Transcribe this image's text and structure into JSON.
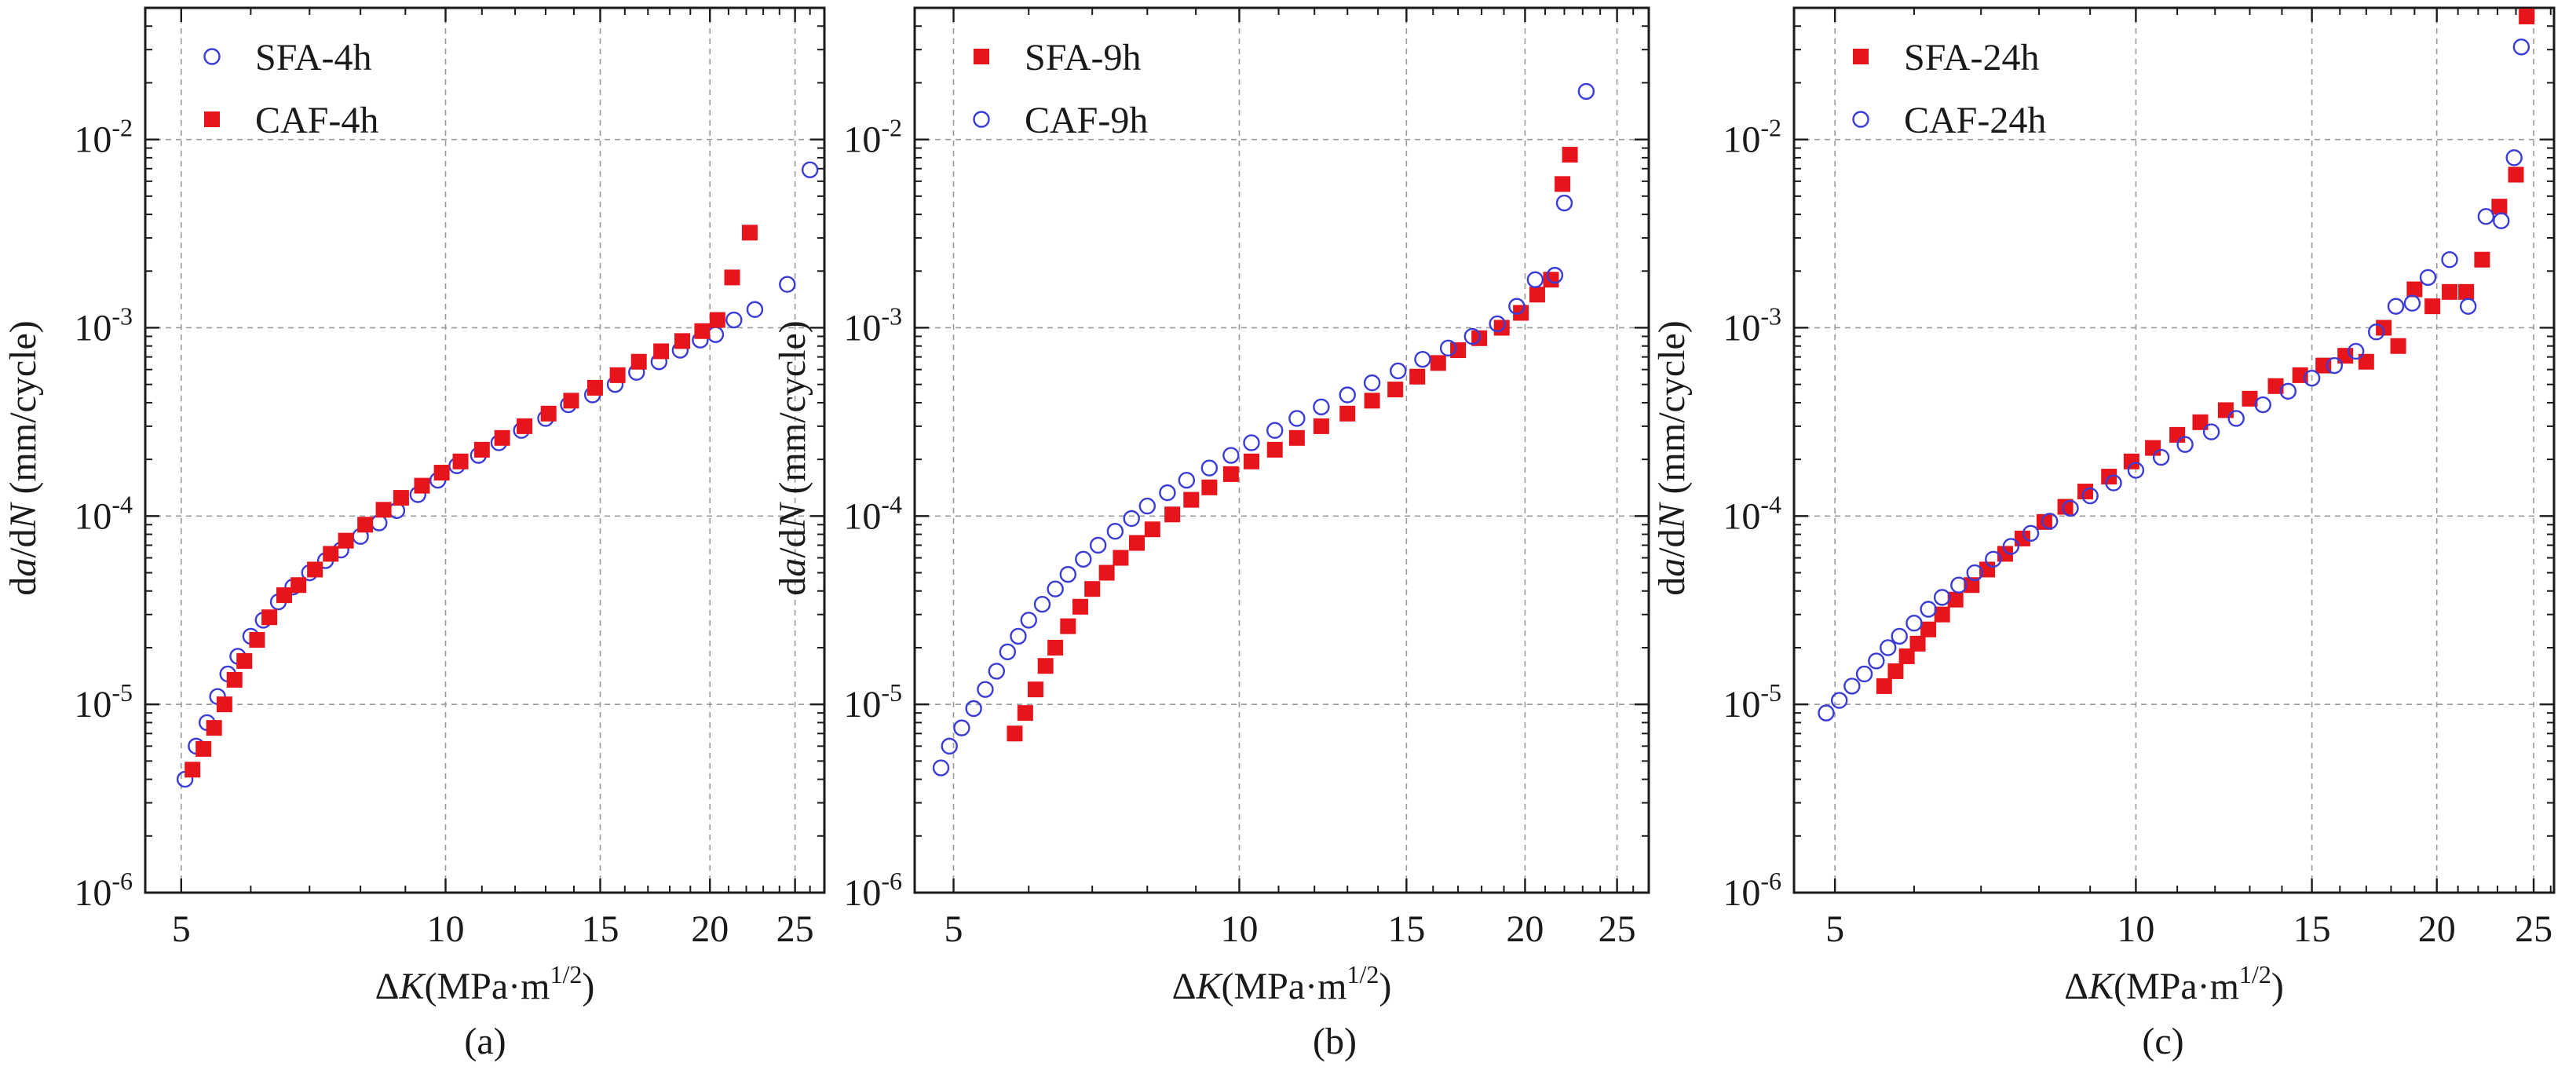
{
  "colors": {
    "sfa_open": "#3b3bd6",
    "caf_red": "#e8141b",
    "grid": "#9a9a9a",
    "axis": "#1a1a1a"
  },
  "chart_data": [
    {
      "type": "scatter",
      "caption": "(a)",
      "xscale": "log",
      "yscale": "log",
      "xlim": [
        4.55,
        27.0
      ],
      "ylim": [
        1e-06,
        0.05
      ],
      "xticks": [
        5,
        10,
        15,
        20,
        25
      ],
      "yticks": [
        1e-06,
        1e-05,
        0.0001,
        0.001,
        0.01
      ],
      "ytick_labels": [
        {
          "base": "10",
          "exp": "-6"
        },
        {
          "base": "10",
          "exp": "-5"
        },
        {
          "base": "10",
          "exp": "-4"
        },
        {
          "base": "10",
          "exp": "-3"
        },
        {
          "base": "10",
          "exp": "-2"
        }
      ],
      "xlabel": {
        "delta": "Δ",
        "var": "K",
        "unit": "(MPa·m",
        "exp": "1/2",
        "close": ")"
      },
      "ylabel": {
        "d1": "d",
        "a": "a",
        "slash": "/d",
        "N": "N",
        "unit": " (mm/cycle)"
      },
      "grid": true,
      "legend_position": "top-left",
      "series": [
        {
          "name": "SFA-4h",
          "marker": "open-circle",
          "x": [
            5.05,
            5.2,
            5.35,
            5.5,
            5.65,
            5.8,
            6.0,
            6.2,
            6.45,
            6.7,
            7.0,
            7.3,
            7.6,
            8.0,
            8.4,
            8.8,
            9.3,
            9.8,
            10.3,
            10.9,
            11.5,
            12.2,
            13.0,
            13.8,
            14.7,
            15.6,
            16.5,
            17.5,
            18.5,
            19.5,
            20.3,
            21.3,
            22.5,
            24.5,
            26.0
          ],
          "y": [
            4e-06,
            6e-06,
            8e-06,
            1.1e-05,
            1.45e-05,
            1.8e-05,
            2.3e-05,
            2.8e-05,
            3.5e-05,
            4.2e-05,
            5e-05,
            5.8e-05,
            6.6e-05,
            7.8e-05,
            9.2e-05,
            0.000107,
            0.00013,
            0.000155,
            0.000185,
            0.00021,
            0.000245,
            0.000285,
            0.00033,
            0.00039,
            0.00044,
            0.0005,
            0.00058,
            0.00066,
            0.00076,
            0.00086,
            0.00092,
            0.0011,
            0.00125,
            0.0017,
            0.0069
          ]
        },
        {
          "name": "CAF-4h",
          "marker": "filled-square",
          "x": [
            5.15,
            5.3,
            5.45,
            5.6,
            5.75,
            5.9,
            6.1,
            6.3,
            6.55,
            6.8,
            7.1,
            7.4,
            7.7,
            8.1,
            8.5,
            8.9,
            9.4,
            9.9,
            10.4,
            11.0,
            11.6,
            12.3,
            13.1,
            13.9,
            14.8,
            15.7,
            16.6,
            17.6,
            18.6,
            19.6,
            20.4,
            21.2,
            22.2
          ],
          "y": [
            4.5e-06,
            5.8e-06,
            7.5e-06,
            1e-05,
            1.35e-05,
            1.7e-05,
            2.2e-05,
            2.9e-05,
            3.8e-05,
            4.3e-05,
            5.2e-05,
            6.3e-05,
            7.4e-05,
            9e-05,
            0.000108,
            0.000125,
            0.000145,
            0.00017,
            0.000195,
            0.000225,
            0.00026,
            0.0003,
            0.00035,
            0.00041,
            0.00048,
            0.00056,
            0.00066,
            0.00075,
            0.00085,
            0.00096,
            0.0011,
            0.00185,
            0.0032
          ]
        }
      ]
    },
    {
      "type": "scatter",
      "caption": "(b)",
      "xscale": "log",
      "yscale": "log",
      "xlim": [
        4.55,
        27.0
      ],
      "ylim": [
        1e-06,
        0.05
      ],
      "xticks": [
        5,
        10,
        15,
        20,
        25
      ],
      "yticks": [
        1e-06,
        1e-05,
        0.0001,
        0.001,
        0.01
      ],
      "ytick_labels": [
        {
          "base": "10",
          "exp": "-6"
        },
        {
          "base": "10",
          "exp": "-5"
        },
        {
          "base": "10",
          "exp": "-4"
        },
        {
          "base": "10",
          "exp": "-3"
        },
        {
          "base": "10",
          "exp": "-2"
        }
      ],
      "xlabel": {
        "delta": "Δ",
        "var": "K",
        "unit": "(MPa·m",
        "exp": "1/2",
        "close": ")"
      },
      "ylabel": {
        "d1": "d",
        "a": "a",
        "slash": "/d",
        "N": "N",
        "unit": " (mm/cycle)"
      },
      "grid": true,
      "legend_position": "top-left",
      "series": [
        {
          "name": "SFA-9h",
          "marker": "filled-square",
          "x": [
            5.8,
            5.95,
            6.1,
            6.25,
            6.4,
            6.6,
            6.8,
            7.0,
            7.25,
            7.5,
            7.8,
            8.1,
            8.5,
            8.9,
            9.3,
            9.8,
            10.3,
            10.9,
            11.5,
            12.2,
            13.0,
            13.8,
            14.6,
            15.4,
            16.2,
            17.0,
            17.9,
            18.9,
            19.8,
            20.6,
            21.3,
            21.9,
            22.3
          ],
          "y": [
            7e-06,
            9e-06,
            1.2e-05,
            1.6e-05,
            2e-05,
            2.6e-05,
            3.3e-05,
            4.1e-05,
            5e-05,
            6e-05,
            7.2e-05,
            8.5e-05,
            0.000102,
            0.000122,
            0.000142,
            0.000167,
            0.000195,
            0.000225,
            0.00026,
            0.0003,
            0.00035,
            0.00041,
            0.00047,
            0.00055,
            0.00065,
            0.00076,
            0.00088,
            0.001,
            0.0012,
            0.0015,
            0.0018,
            0.0058,
            0.0083
          ]
        },
        {
          "name": "CAF-9h",
          "marker": "open-circle",
          "x": [
            4.85,
            4.95,
            5.1,
            5.25,
            5.4,
            5.55,
            5.7,
            5.85,
            6.0,
            6.2,
            6.4,
            6.6,
            6.85,
            7.1,
            7.4,
            7.7,
            8.0,
            8.4,
            8.8,
            9.3,
            9.8,
            10.3,
            10.9,
            11.5,
            12.2,
            13.0,
            13.8,
            14.7,
            15.6,
            16.6,
            17.6,
            18.7,
            19.6,
            20.5,
            21.5,
            22.0,
            23.2
          ],
          "y": [
            4.6e-06,
            6e-06,
            7.5e-06,
            9.5e-06,
            1.2e-05,
            1.5e-05,
            1.9e-05,
            2.3e-05,
            2.8e-05,
            3.4e-05,
            4.1e-05,
            4.9e-05,
            5.9e-05,
            7e-05,
            8.3e-05,
            9.7e-05,
            0.000113,
            0.000133,
            0.000155,
            0.00018,
            0.00021,
            0.000245,
            0.000285,
            0.00033,
            0.00038,
            0.00044,
            0.00051,
            0.00059,
            0.00068,
            0.00078,
            0.0009,
            0.00105,
            0.0013,
            0.0018,
            0.0019,
            0.0046,
            0.018
          ]
        }
      ]
    },
    {
      "type": "scatter",
      "caption": "(c)",
      "xscale": "log",
      "yscale": "log",
      "xlim": [
        4.55,
        26.2
      ],
      "ylim": [
        1e-06,
        0.05
      ],
      "xticks": [
        5,
        10,
        15,
        20,
        25
      ],
      "yticks": [
        1e-06,
        1e-05,
        0.0001,
        0.001,
        0.01
      ],
      "ytick_labels": [
        {
          "base": "10",
          "exp": "-6"
        },
        {
          "base": "10",
          "exp": "-5"
        },
        {
          "base": "10",
          "exp": "-4"
        },
        {
          "base": "10",
          "exp": "-3"
        },
        {
          "base": "10",
          "exp": "-2"
        }
      ],
      "xlabel": {
        "delta": "Δ",
        "var": "K",
        "unit": "(MPa·m",
        "exp": "1/2",
        "close": ")"
      },
      "ylabel": {
        "d1": "d",
        "a": "a",
        "slash": "/d",
        "N": "N",
        "unit": " (mm/cycle)"
      },
      "grid": true,
      "legend_position": "top-left",
      "series": [
        {
          "name": "SFA-24h",
          "marker": "filled-square",
          "x": [
            5.6,
            5.75,
            5.9,
            6.05,
            6.2,
            6.4,
            6.6,
            6.85,
            7.1,
            7.4,
            7.7,
            8.1,
            8.5,
            8.9,
            9.4,
            9.9,
            10.4,
            11.0,
            11.6,
            12.3,
            13.0,
            13.8,
            14.6,
            15.4,
            16.2,
            17.0,
            17.7,
            18.3,
            19.0,
            19.8,
            20.6,
            21.4,
            22.2,
            23.1,
            24.0,
            24.6
          ],
          "y": [
            1.25e-05,
            1.5e-05,
            1.8e-05,
            2.1e-05,
            2.5e-05,
            3e-05,
            3.6e-05,
            4.3e-05,
            5.2e-05,
            6.3e-05,
            7.6e-05,
            9.3e-05,
            0.000112,
            0.000135,
            0.000162,
            0.000195,
            0.00023,
            0.00027,
            0.000315,
            0.000365,
            0.00042,
            0.00049,
            0.00056,
            0.00063,
            0.00071,
            0.00066,
            0.001,
            0.0008,
            0.0016,
            0.0013,
            0.00155,
            0.00155,
            0.0023,
            0.0044,
            0.0065,
            0.045
          ]
        },
        {
          "name": "CAF-24h",
          "marker": "open-circle",
          "x": [
            4.9,
            5.05,
            5.2,
            5.35,
            5.5,
            5.65,
            5.8,
            6.0,
            6.2,
            6.4,
            6.65,
            6.9,
            7.2,
            7.5,
            7.85,
            8.2,
            8.6,
            9.0,
            9.5,
            10.0,
            10.6,
            11.2,
            11.9,
            12.6,
            13.4,
            14.2,
            15.0,
            15.8,
            16.6,
            17.4,
            18.2,
            18.9,
            19.6,
            20.6,
            21.5,
            22.4,
            23.2,
            23.9,
            24.3
          ],
          "y": [
            9e-06,
            1.05e-05,
            1.25e-05,
            1.45e-05,
            1.7e-05,
            2e-05,
            2.3e-05,
            2.7e-05,
            3.2e-05,
            3.7e-05,
            4.3e-05,
            5e-05,
            5.9e-05,
            6.9e-05,
            8.1e-05,
            9.4e-05,
            0.00011,
            0.000128,
            0.00015,
            0.000175,
            0.000205,
            0.00024,
            0.00028,
            0.00033,
            0.00039,
            0.00046,
            0.00054,
            0.00063,
            0.00075,
            0.00095,
            0.0013,
            0.00135,
            0.00185,
            0.0023,
            0.0013,
            0.0039,
            0.0037,
            0.008,
            0.031
          ]
        }
      ]
    }
  ]
}
